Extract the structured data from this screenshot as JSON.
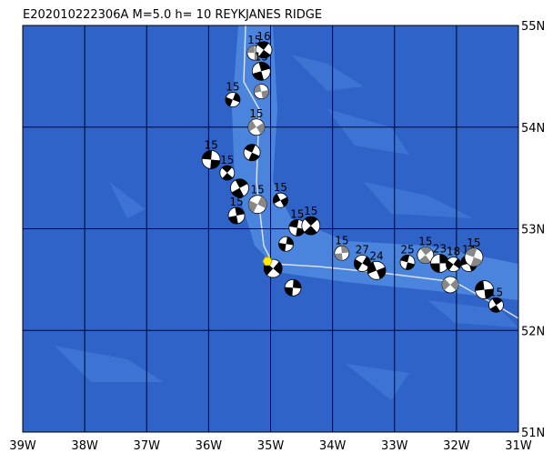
{
  "title": "E202010222306A  M=5.0  h= 10  REYKJANES RIDGE",
  "map": {
    "xlim": [
      -39,
      -31
    ],
    "ylim": [
      51,
      55
    ],
    "lon_ticks": [
      {
        "value": -39,
        "label": "39W"
      },
      {
        "value": -38,
        "label": "38W"
      },
      {
        "value": -37,
        "label": "37W"
      },
      {
        "value": -36,
        "label": "36W"
      },
      {
        "value": -35,
        "label": "35W"
      },
      {
        "value": -34,
        "label": "34W"
      },
      {
        "value": -33,
        "label": "33W"
      },
      {
        "value": -32,
        "label": "32W"
      },
      {
        "value": -31,
        "label": "31W"
      }
    ],
    "lat_ticks": [
      {
        "value": 51,
        "label": "51N"
      },
      {
        "value": 52,
        "label": "52N"
      },
      {
        "value": 53,
        "label": "53N"
      },
      {
        "value": 54,
        "label": "54N"
      },
      {
        "value": 55,
        "label": "55N"
      }
    ],
    "epicenter": {
      "lon": -35.05,
      "lat": 52.68
    },
    "events": [
      {
        "lon": -35.26,
        "lat": 54.73,
        "depth": "15"
      },
      {
        "lon": -35.11,
        "lat": 54.76,
        "depth": "16"
      },
      {
        "lon": -35.15,
        "lat": 54.55,
        "depth": "15"
      },
      {
        "lon": -35.61,
        "lat": 54.27,
        "depth": "15"
      },
      {
        "lon": -35.23,
        "lat": 54.0,
        "depth": "15"
      },
      {
        "lon": -35.96,
        "lat": 53.68,
        "depth": "15"
      },
      {
        "lon": -35.7,
        "lat": 53.55,
        "depth": "15"
      },
      {
        "lon": -35.55,
        "lat": 53.13,
        "depth": "15"
      },
      {
        "lon": -35.21,
        "lat": 53.24,
        "depth": "15"
      },
      {
        "lon": -34.84,
        "lat": 53.28,
        "depth": "15"
      },
      {
        "lon": -34.57,
        "lat": 53.01,
        "depth": "15"
      },
      {
        "lon": -34.35,
        "lat": 53.03,
        "depth": "15"
      },
      {
        "lon": -33.85,
        "lat": 52.76,
        "depth": "15"
      },
      {
        "lon": -33.52,
        "lat": 52.66,
        "depth": "27"
      },
      {
        "lon": -33.29,
        "lat": 52.59,
        "depth": "24"
      },
      {
        "lon": -32.79,
        "lat": 52.67,
        "depth": "25"
      },
      {
        "lon": -32.5,
        "lat": 52.74,
        "depth": "15"
      },
      {
        "lon": -32.27,
        "lat": 52.66,
        "depth": "23"
      },
      {
        "lon": -32.05,
        "lat": 52.65,
        "depth": "18"
      },
      {
        "lon": -31.8,
        "lat": 52.66,
        "depth": "14"
      },
      {
        "lon": -31.72,
        "lat": 52.72,
        "depth": "15"
      },
      {
        "lon": -31.36,
        "lat": 52.25,
        "depth": "15"
      },
      {
        "lon": -34.64,
        "lat": 52.42,
        "depth": null
      },
      {
        "lon": -34.96,
        "lat": 52.61,
        "depth": null
      },
      {
        "lon": -35.15,
        "lat": 54.35,
        "depth": null
      },
      {
        "lon": -35.3,
        "lat": 53.75,
        "depth": null
      },
      {
        "lon": -35.5,
        "lat": 53.4,
        "depth": null
      },
      {
        "lon": -34.75,
        "lat": 52.85,
        "depth": null
      },
      {
        "lon": -32.1,
        "lat": 52.45,
        "depth": null
      },
      {
        "lon": -31.55,
        "lat": 52.4,
        "depth": null
      }
    ]
  }
}
